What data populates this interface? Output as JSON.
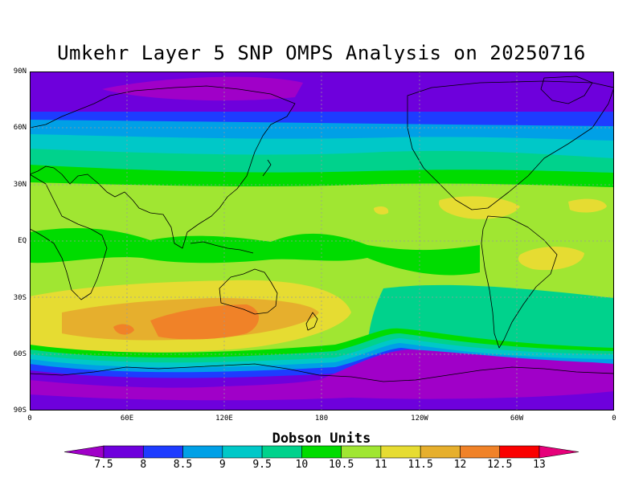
{
  "title": "Umkehr Layer 5 SNP OMPS Analysis on 20250716",
  "map": {
    "lat_ticks": [
      "90N",
      "60N",
      "30N",
      "EQ",
      "30S",
      "60S",
      "90S"
    ],
    "lon_ticks": [
      "0",
      "60E",
      "120E",
      "180",
      "120W",
      "60W",
      "0"
    ],
    "gridlines": true,
    "coastlines": true
  },
  "colorbar": {
    "title": "Dobson Units",
    "labels": [
      "7.5",
      "8",
      "8.5",
      "9",
      "9.5",
      "10",
      "10.5",
      "11",
      "11.5",
      "12",
      "12.5",
      "13"
    ],
    "colors": [
      "#a000c8",
      "#6e00dc",
      "#1e3cff",
      "#00a0e6",
      "#00c8c8",
      "#00d28c",
      "#00dc00",
      "#a0e632",
      "#e6dc32",
      "#e6af2d",
      "#f08228",
      "#fa0000",
      "#e6007a"
    ]
  }
}
